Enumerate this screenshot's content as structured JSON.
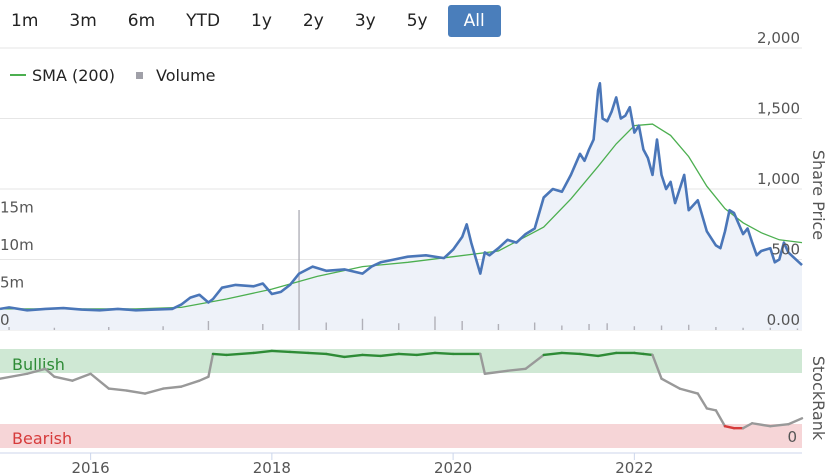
{
  "range_selector": {
    "buttons": [
      "1m",
      "3m",
      "6m",
      "YTD",
      "1y",
      "2y",
      "3y",
      "5y",
      "All"
    ],
    "active": "All"
  },
  "legend": {
    "sma_label": "SMA (200)",
    "volume_label": "Volume"
  },
  "price_axis": {
    "title": "Share Price",
    "ticks": [
      "2,000",
      "1,500",
      "1,000",
      "500",
      "0.00"
    ]
  },
  "volume_axis": {
    "ticks": [
      "15m",
      "10m",
      "5m",
      "0"
    ]
  },
  "stockrank_axis": {
    "title": "StockRank",
    "zero_label": "0",
    "bullish_label": "Bullish",
    "bearish_label": "Bearish"
  },
  "x_axis": {
    "ticks": [
      "2016",
      "2018",
      "2020",
      "2022"
    ]
  },
  "colors": {
    "price_line": "#4a76b8",
    "sma_line": "#4caf50",
    "bullish_band": "#cfe8d4",
    "bearish_band": "#f6d5d7",
    "rank_bullish": "#2e8b36",
    "rank_neutral": "#999999",
    "rank_bearish": "#d63b3b",
    "active_button": "#4a7ebb"
  },
  "chart_data": [
    {
      "type": "line",
      "series": [
        {
          "name": "Share Price",
          "x": [
            2015.0,
            2015.1,
            2015.3,
            2015.5,
            2015.7,
            2015.9,
            2016.1,
            2016.3,
            2016.5,
            2016.7,
            2016.9,
            2017.0,
            2017.1,
            2017.2,
            2017.3,
            2017.35,
            2017.45,
            2017.6,
            2017.8,
            2017.9,
            2018.0,
            2018.1,
            2018.2,
            2018.3,
            2018.45,
            2018.6,
            2018.8,
            2019.0,
            2019.1,
            2019.2,
            2019.35,
            2019.5,
            2019.7,
            2019.9,
            2020.0,
            2020.1,
            2020.15,
            2020.2,
            2020.3,
            2020.35,
            2020.4,
            2020.5,
            2020.6,
            2020.7,
            2020.8,
            2020.9,
            2021.0,
            2021.1,
            2021.2,
            2021.3,
            2021.4,
            2021.45,
            2021.5,
            2021.55,
            2021.6,
            2021.62,
            2021.65,
            2021.7,
            2021.75,
            2021.8,
            2021.85,
            2021.9,
            2021.95,
            2022.0,
            2022.05,
            2022.1,
            2022.15,
            2022.2,
            2022.25,
            2022.3,
            2022.35,
            2022.4,
            2022.45,
            2022.5,
            2022.55,
            2022.6,
            2022.7,
            2022.8,
            2022.9,
            2022.95,
            2023.0,
            2023.05,
            2023.1,
            2023.2,
            2023.25,
            2023.3,
            2023.35,
            2023.4,
            2023.5,
            2023.55,
            2023.6,
            2023.65,
            2023.7,
            2023.75,
            2023.85
          ],
          "y": [
            150,
            160,
            140,
            150,
            155,
            145,
            140,
            150,
            140,
            145,
            150,
            180,
            230,
            250,
            195,
            220,
            300,
            320,
            310,
            330,
            255,
            270,
            320,
            400,
            450,
            420,
            430,
            400,
            450,
            480,
            500,
            520,
            530,
            510,
            570,
            660,
            750,
            620,
            400,
            550,
            530,
            580,
            640,
            620,
            680,
            720,
            940,
            1000,
            980,
            1100,
            1250,
            1200,
            1280,
            1350,
            1700,
            1750,
            1500,
            1480,
            1550,
            1650,
            1500,
            1520,
            1580,
            1400,
            1450,
            1280,
            1220,
            1100,
            1350,
            1100,
            1000,
            1050,
            900,
            1000,
            1100,
            850,
            920,
            700,
            600,
            580,
            700,
            850,
            830,
            680,
            720,
            620,
            530,
            560,
            580,
            480,
            500,
            620,
            550,
            520,
            460
          ]
        },
        {
          "name": "SMA (200)",
          "x": [
            2015.0,
            2015.5,
            2016.0,
            2016.5,
            2017.0,
            2017.5,
            2018.0,
            2018.5,
            2019.0,
            2019.5,
            2020.0,
            2020.5,
            2021.0,
            2021.3,
            2021.6,
            2021.8,
            2022.0,
            2022.2,
            2022.4,
            2022.6,
            2022.8,
            2023.0,
            2023.2,
            2023.4,
            2023.6,
            2023.85
          ],
          "y": [
            150,
            150,
            150,
            150,
            160,
            220,
            290,
            380,
            450,
            480,
            520,
            560,
            730,
            930,
            1160,
            1320,
            1450,
            1460,
            1380,
            1230,
            1020,
            860,
            760,
            690,
            640,
            620
          ]
        }
      ],
      "xlim": [
        2015.0,
        2023.85
      ],
      "ylim": [
        0,
        2000
      ]
    },
    {
      "type": "bar",
      "name": "Volume",
      "x": [
        2015.1,
        2015.6,
        2016.2,
        2016.8,
        2017.3,
        2017.9,
        2018.3,
        2018.6,
        2019.0,
        2019.4,
        2019.8,
        2020.1,
        2020.5,
        2020.9,
        2021.2,
        2021.5,
        2021.7,
        2022.0,
        2022.3,
        2022.6,
        2022.9,
        2023.2,
        2023.5,
        2023.8
      ],
      "values": [
        0.4,
        0.3,
        0.4,
        0.5,
        1.2,
        0.8,
        16,
        1.0,
        1.5,
        0.9,
        1.8,
        1.2,
        0.8,
        1.0,
        0.6,
        0.8,
        0.9,
        0.5,
        0.6,
        0.7,
        0.4,
        0.3,
        0.3,
        0.2
      ],
      "ylim": [
        0,
        20
      ]
    },
    {
      "type": "line",
      "name": "StockRank",
      "x": [
        2015.0,
        2015.3,
        2015.5,
        2015.6,
        2015.8,
        2016.0,
        2016.2,
        2016.4,
        2016.6,
        2016.8,
        2017.0,
        2017.2,
        2017.3,
        2017.35,
        2017.5,
        2017.8,
        2018.0,
        2018.2,
        2018.4,
        2018.6,
        2018.8,
        2019.0,
        2019.2,
        2019.4,
        2019.6,
        2019.8,
        2020.0,
        2020.3,
        2020.35,
        2020.6,
        2020.8,
        2021.0,
        2021.2,
        2021.4,
        2021.6,
        2021.8,
        2022.0,
        2022.1,
        2022.2,
        2022.3,
        2022.5,
        2022.7,
        2022.8,
        2022.9,
        2023.0,
        2023.1,
        2023.2,
        2023.3,
        2023.5,
        2023.7,
        2023.85
      ],
      "values": [
        70,
        75,
        80,
        72,
        68,
        75,
        60,
        58,
        55,
        60,
        62,
        68,
        72,
        95,
        94,
        96,
        98,
        97,
        96,
        95,
        92,
        94,
        93,
        95,
        94,
        96,
        95,
        95,
        75,
        78,
        80,
        94,
        96,
        95,
        93,
        96,
        96,
        95,
        94,
        70,
        60,
        55,
        40,
        38,
        22,
        20,
        20,
        25,
        22,
        24,
        30
      ],
      "ylim": [
        0,
        100
      ]
    }
  ]
}
